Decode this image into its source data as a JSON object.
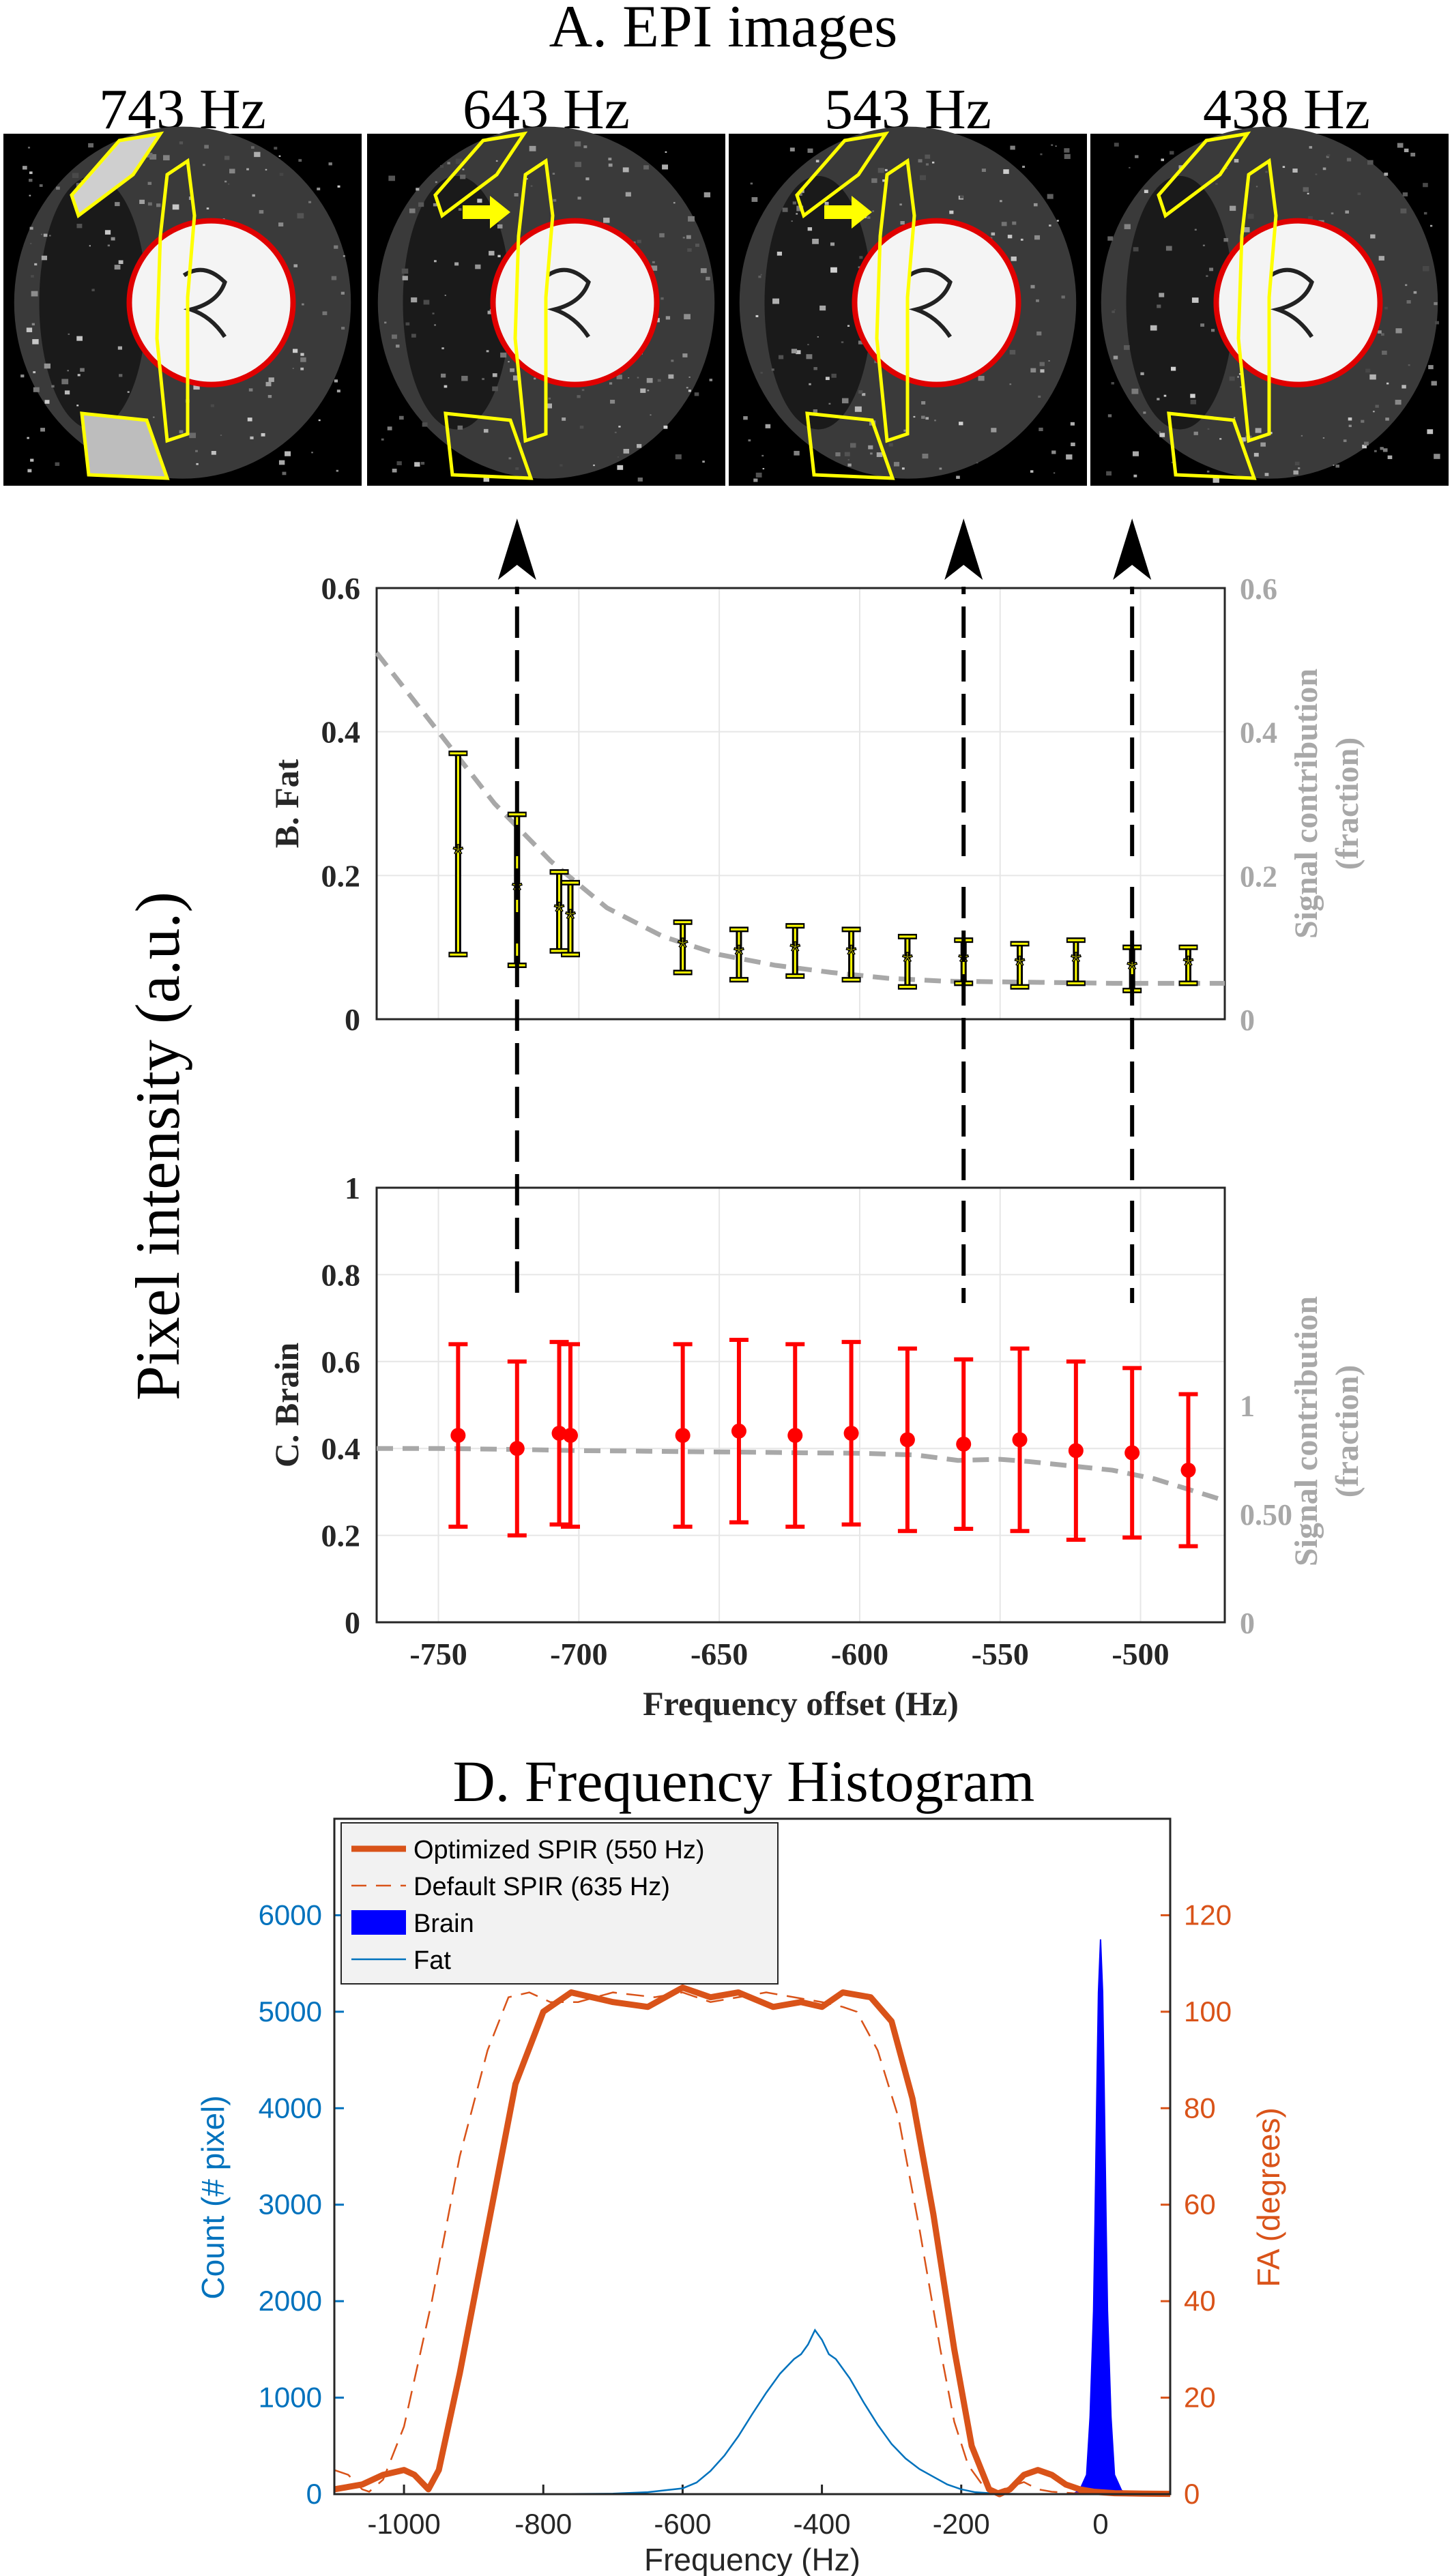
{
  "panel_a": {
    "title": "A. EPI images",
    "images": [
      {
        "label": "743 Hz",
        "arrow": false
      },
      {
        "label": "643 Hz",
        "arrow": true
      },
      {
        "label": "543 Hz",
        "arrow": true
      },
      {
        "label": "438 Hz",
        "arrow": false
      }
    ]
  },
  "shared_ylabel": "Pixel intensity (a.u.)",
  "colors": {
    "fat_marker": "#ffff00",
    "brain_marker": "#ff0000",
    "signal_curve": "#a8a8a8",
    "opt_spir": "#d95319",
    "brain_hist": "#0000ff",
    "fat_hist": "#0072bd",
    "left_axis_d": "#0072bd",
    "right_axis_d": "#d95319"
  },
  "chart_data": [
    {
      "id": "fat",
      "type": "scatter",
      "title": "B. Fat",
      "xlabel": "Frequency offset  (Hz)",
      "ylabel": "B. Fat",
      "right_ylabel": "Signal contribution (fraction)",
      "right_ylabel_lines": [
        "Signal contribution",
        "(fraction)"
      ],
      "xlim": [
        -772,
        -470
      ],
      "ylim": [
        0,
        0.6
      ],
      "yticks": [
        0,
        0.2,
        0.4,
        0.6
      ],
      "ytick_labels": [
        "0",
        "0.2",
        "0.4",
        "0.6"
      ],
      "right_ylim": [
        0,
        0.6
      ],
      "right_yticks": [
        0,
        0.2,
        0.4,
        0.6
      ],
      "right_ytick_labels": [
        "0",
        "0.2",
        "0.4",
        "0.6"
      ],
      "xgrid": [
        -750,
        -700,
        -650,
        -600,
        -550,
        -500
      ],
      "grid": true,
      "series": [
        {
          "marker": "star",
          "x": [
            -743,
            -722,
            -707,
            -703,
            -663,
            -643,
            -623,
            -603,
            -583,
            -563,
            -543,
            -523,
            -503,
            -483
          ],
          "y": [
            0.23,
            0.18,
            0.15,
            0.14,
            0.1,
            0.09,
            0.095,
            0.09,
            0.08,
            0.08,
            0.075,
            0.08,
            0.07,
            0.075
          ],
          "err": [
            0.14,
            0.105,
            0.055,
            0.05,
            0.035,
            0.035,
            0.035,
            0.035,
            0.035,
            0.03,
            0.03,
            0.03,
            0.03,
            0.025
          ]
        },
        {
          "style": "dashed",
          "x": [
            -772,
            -750,
            -730,
            -710,
            -690,
            -670,
            -650,
            -630,
            -610,
            -590,
            -570,
            -550,
            -530,
            -510,
            -490,
            -470
          ],
          "y": [
            0.51,
            0.4,
            0.3,
            0.22,
            0.155,
            0.115,
            0.09,
            0.075,
            0.065,
            0.057,
            0.053,
            0.052,
            0.051,
            0.05,
            0.05,
            0.05
          ]
        }
      ]
    },
    {
      "id": "brain",
      "type": "scatter",
      "title": "C. Brain",
      "xlabel": "Frequency offset  (Hz)",
      "ylabel": "C. Brain",
      "right_ylabel": "Signal contribution (fraction)",
      "right_ylabel_lines": [
        "Signal contribution",
        "(fraction)"
      ],
      "xlim": [
        -772,
        -470
      ],
      "xticks": [
        -750,
        -700,
        -650,
        -600,
        -550,
        -500
      ],
      "xtick_labels": [
        "-750",
        "-700",
        "-650",
        "-600",
        "-550",
        "-500"
      ],
      "ylim": [
        0,
        1
      ],
      "yticks": [
        0,
        0.2,
        0.4,
        0.6,
        0.8,
        1
      ],
      "ytick_labels": [
        "0",
        "0.2",
        "0.4",
        "0.6",
        "0.8",
        "1"
      ],
      "right_ylim": [
        0,
        2
      ],
      "right_yticks": [
        0,
        0.5,
        1
      ],
      "right_ytick_labels": [
        "0",
        "0.50",
        "1"
      ],
      "grid": true,
      "series": [
        {
          "marker": "circle",
          "x": [
            -743,
            -722,
            -707,
            -703,
            -663,
            -643,
            -623,
            -603,
            -583,
            -563,
            -543,
            -523,
            -503,
            -483
          ],
          "y": [
            0.43,
            0.4,
            0.435,
            0.43,
            0.43,
            0.44,
            0.43,
            0.435,
            0.42,
            0.41,
            0.42,
            0.395,
            0.39,
            0.35
          ],
          "err": [
            0.21,
            0.2,
            0.21,
            0.21,
            0.21,
            0.21,
            0.21,
            0.21,
            0.21,
            0.195,
            0.21,
            0.205,
            0.195,
            0.175
          ]
        },
        {
          "style": "dashed",
          "x": [
            -772,
            -750,
            -720,
            -700,
            -680,
            -660,
            -640,
            -620,
            -600,
            -580,
            -565,
            -550,
            -540,
            -525,
            -510,
            -495,
            -485,
            -470
          ],
          "y": [
            0.8,
            0.8,
            0.795,
            0.79,
            0.788,
            0.785,
            0.783,
            0.78,
            0.778,
            0.77,
            0.745,
            0.75,
            0.74,
            0.72,
            0.7,
            0.66,
            0.62,
            0.56
          ]
        }
      ]
    },
    {
      "id": "histogram",
      "type": "line",
      "title": "D. Frequency Histogram",
      "xlabel": "Frequency (Hz)",
      "ylabel": "Count (# pixel)",
      "right_ylabel": "FA (degrees)",
      "xlim": [
        -1100,
        100
      ],
      "xticks": [
        -1000,
        -800,
        -600,
        -400,
        -200,
        0
      ],
      "xtick_labels": [
        "-1000",
        "-800",
        "-600",
        "-400",
        "-200",
        "0"
      ],
      "ylim": [
        0,
        7000
      ],
      "yticks": [
        0,
        1000,
        2000,
        3000,
        4000,
        5000,
        6000
      ],
      "ytick_labels": [
        "0",
        "1000",
        "2000",
        "3000",
        "4000",
        "5000",
        "6000"
      ],
      "right_ylim": [
        0,
        140
      ],
      "right_yticks": [
        0,
        20,
        40,
        60,
        80,
        100,
        120
      ],
      "right_ytick_labels": [
        "0",
        "20",
        "40",
        "60",
        "80",
        "100",
        "120"
      ],
      "grid": false,
      "legend_position": "top-left",
      "series": [
        {
          "name": "Optimized SPIR (550 Hz)",
          "axis": "right",
          "style": "solid-thick",
          "x": [
            -1100,
            -1060,
            -1030,
            -1000,
            -985,
            -965,
            -950,
            -920,
            -880,
            -840,
            -800,
            -760,
            -700,
            -650,
            -600,
            -560,
            -520,
            -470,
            -430,
            -400,
            -370,
            -330,
            -300,
            -270,
            -240,
            -210,
            -185,
            -160,
            -145,
            -130,
            -110,
            -90,
            -70,
            -50,
            -30,
            -10,
            20,
            60,
            100
          ],
          "y": [
            1,
            2,
            4,
            5,
            4,
            1,
            5,
            25,
            55,
            85,
            100,
            104,
            102,
            101,
            105,
            103,
            104,
            101,
            102,
            101,
            104,
            103,
            98,
            82,
            58,
            30,
            10,
            1,
            0,
            1,
            4,
            5,
            4,
            2,
            1,
            0.5,
            0.2,
            0.1,
            0.05
          ]
        },
        {
          "name": "Default SPIR (635 Hz)",
          "axis": "right",
          "style": "dashed-thin",
          "x": [
            -1100,
            -1080,
            -1060,
            -1050,
            -1030,
            -1000,
            -960,
            -920,
            -880,
            -850,
            -820,
            -790,
            -750,
            -700,
            -640,
            -600,
            -560,
            -520,
            -480,
            -440,
            -400,
            -370,
            -350,
            -320,
            -290,
            -260,
            -230,
            -210,
            -190,
            -170,
            -150,
            -130,
            -110,
            -90,
            -70,
            -40,
            0,
            50,
            100
          ],
          "y": [
            5,
            4,
            1,
            0.5,
            3,
            14,
            40,
            70,
            92,
            103,
            104,
            102,
            102,
            104,
            103,
            104,
            102,
            103,
            104,
            103,
            102,
            101,
            100,
            92,
            78,
            55,
            30,
            15,
            6,
            2,
            0.5,
            1.5,
            2.5,
            1,
            0.5,
            0.2,
            0.1,
            0.05,
            0.02
          ]
        },
        {
          "name": "Brain",
          "axis": "left",
          "style": "filled",
          "x": [
            -40,
            -30,
            -20,
            -15,
            -10,
            -8,
            -5,
            -3,
            0,
            3,
            5,
            8,
            10,
            15,
            20,
            30,
            40
          ],
          "y": [
            0,
            40,
            200,
            800,
            1900,
            2800,
            4300,
            5200,
            5750,
            5200,
            4300,
            2800,
            1900,
            800,
            200,
            40,
            0
          ]
        },
        {
          "name": "Fat",
          "axis": "left",
          "style": "solid-thin",
          "x": [
            -1100,
            -800,
            -700,
            -650,
            -600,
            -580,
            -560,
            -540,
            -520,
            -500,
            -480,
            -460,
            -440,
            -430,
            -420,
            -410,
            -400,
            -390,
            -380,
            -360,
            -340,
            -320,
            -300,
            -280,
            -260,
            -240,
            -220,
            -200,
            -180,
            -150,
            -100,
            100
          ],
          "y": [
            0,
            0,
            5,
            20,
            60,
            120,
            240,
            400,
            600,
            830,
            1050,
            1250,
            1400,
            1450,
            1550,
            1700,
            1600,
            1450,
            1400,
            1200,
            950,
            720,
            520,
            370,
            260,
            180,
            100,
            50,
            20,
            5,
            0,
            0
          ]
        }
      ]
    }
  ]
}
